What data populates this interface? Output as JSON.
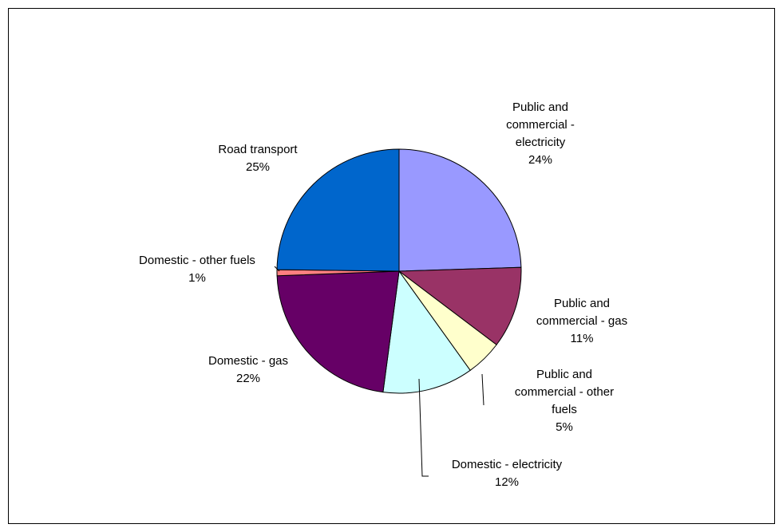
{
  "chart_data": {
    "type": "pie",
    "start_angle": "12 o'clock",
    "direction": "clockwise",
    "slices": [
      {
        "label": [
          "Public and",
          "commercial -",
          "electricity"
        ],
        "value_label": "24%",
        "value": 24.5,
        "color": "#9999FF"
      },
      {
        "label": [
          "Public and",
          "commercial - gas"
        ],
        "value_label": "11%",
        "value": 10.8,
        "color": "#993366"
      },
      {
        "label": [
          "Public and",
          "commercial - other",
          "fuels"
        ],
        "value_label": "5%",
        "value": 4.8,
        "color": "#FFFFCC"
      },
      {
        "label": [
          "Domestic - electricity"
        ],
        "value_label": "12%",
        "value": 12.0,
        "color": "#CCFFFF"
      },
      {
        "label": [
          "Domestic - gas"
        ],
        "value_label": "22%",
        "value": 22.3,
        "color": "#660066"
      },
      {
        "label": [
          "Domestic - other fuels"
        ],
        "value_label": "1%",
        "value": 0.8,
        "color": "#FF8080"
      },
      {
        "label": [
          "Road transport"
        ],
        "value_label": "25%",
        "value": 24.8,
        "color": "#0066CC"
      }
    ]
  }
}
